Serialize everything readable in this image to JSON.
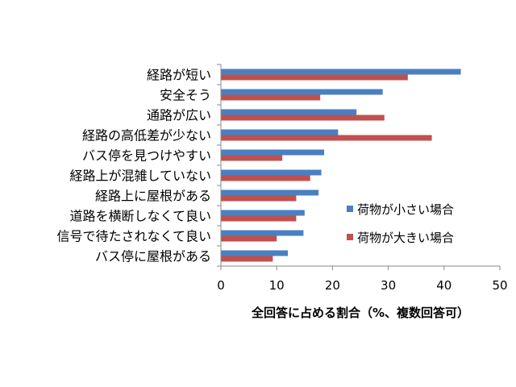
{
  "chart_data": {
    "type": "bar",
    "orientation": "horizontal",
    "categories": [
      "経路が短い",
      "安全そう",
      "通路が広い",
      "経路の高低差が少ない",
      "バス停を見つけやすい",
      "経路上が混雑していない",
      "経路上に屋根がある",
      "道路を横断しなくて良い",
      "信号で待たされなくて良い",
      "バス停に屋根がある"
    ],
    "series": [
      {
        "name": "荷物が小さい場合",
        "color": "#4a7fc1",
        "values": [
          43,
          29,
          24.3,
          21,
          18.5,
          18,
          17.5,
          15,
          14.8,
          12
        ]
      },
      {
        "name": "荷物が大きい場合",
        "color": "#c0504d",
        "values": [
          33.5,
          17.8,
          29.3,
          37.8,
          11,
          16,
          13.5,
          13.5,
          10,
          9.3
        ]
      }
    ],
    "xlabel": "全回答に占める割合（%、複数回答可）",
    "xlim": [
      0,
      50
    ],
    "xticks": [
      "0",
      "10",
      "20",
      "30",
      "40",
      "50"
    ],
    "grid": false,
    "legend_position": "inside-right"
  }
}
